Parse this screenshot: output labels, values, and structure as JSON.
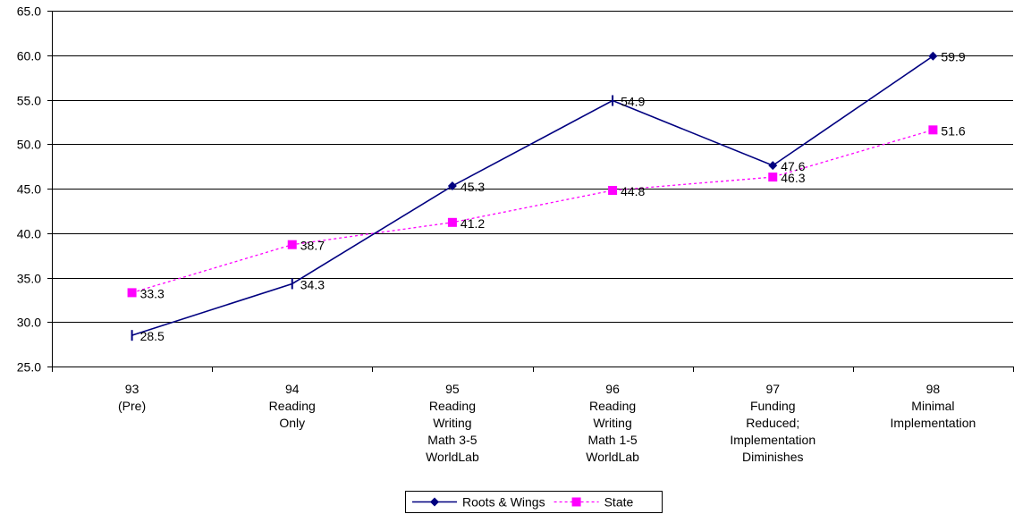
{
  "chart_data": {
    "type": "line",
    "ylim": [
      25.0,
      65.0
    ],
    "ytick_step": 5,
    "grid": true,
    "legend_position": "bottom-center",
    "categories": [
      [
        "93",
        "(Pre)"
      ],
      [
        "94",
        "Reading",
        "Only"
      ],
      [
        "95",
        "Reading",
        "Writing",
        "Math 3-5",
        "WorldLab"
      ],
      [
        "96",
        "Reading",
        "Writing",
        "Math 1-5",
        "WorldLab"
      ],
      [
        "97",
        "Funding",
        "Reduced;",
        "Implementation",
        "Diminishes"
      ],
      [
        "98",
        "Minimal",
        "Implementation"
      ]
    ],
    "series": [
      {
        "name": "Roots & Wings",
        "values": [
          28.5,
          34.3,
          45.3,
          54.9,
          47.6,
          59.9
        ],
        "labels": [
          "28.5",
          "34.3",
          "45.3",
          "54.9",
          "47.6",
          "59.9"
        ],
        "markers": [
          "dash",
          "dash",
          "diamond",
          "dash",
          "diamond",
          "diamond"
        ],
        "color": "#000080",
        "style": "solid"
      },
      {
        "name": "State",
        "values": [
          33.3,
          38.7,
          41.2,
          44.8,
          46.3,
          51.6
        ],
        "labels": [
          "33.3",
          "38.7",
          "41.2",
          "44.8",
          "46.3",
          "51.6"
        ],
        "markers": [
          "square",
          "square",
          "square",
          "square",
          "square",
          "square"
        ],
        "color": "#FF00FF",
        "style": "dotted"
      }
    ]
  }
}
